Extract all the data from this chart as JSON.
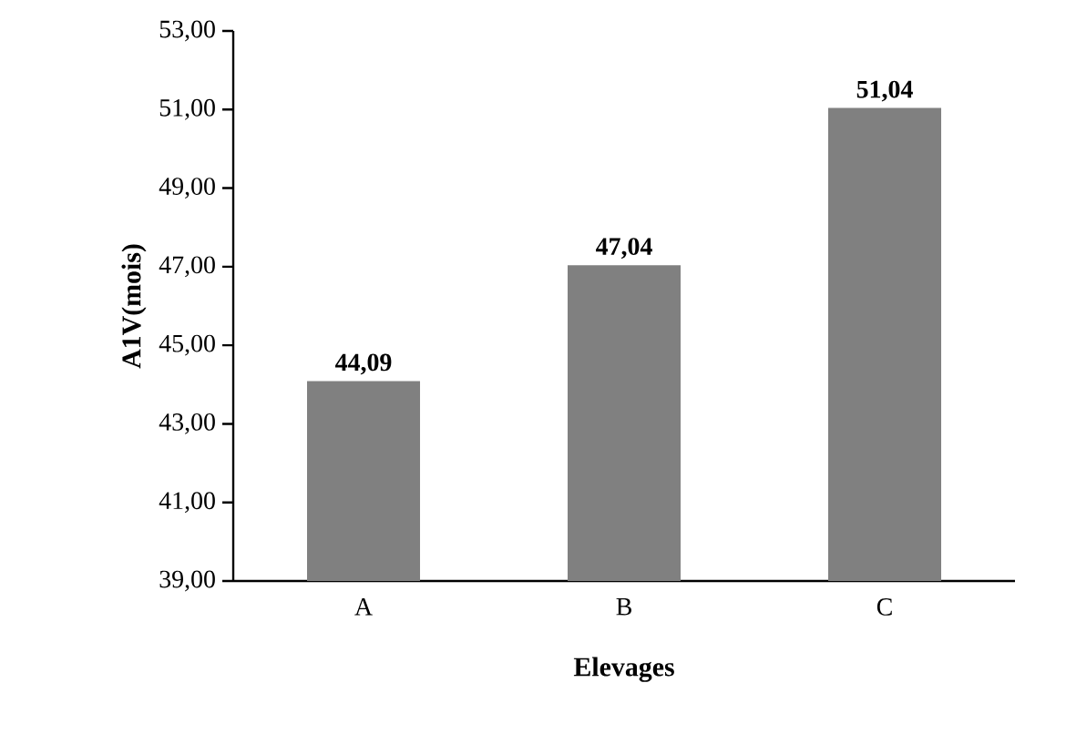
{
  "chart_data": {
    "type": "bar",
    "xlabel": "Elevages",
    "ylabel": "A1V(mois)",
    "categories": [
      "A",
      "B",
      "C"
    ],
    "values": [
      44.09,
      47.04,
      51.04
    ],
    "value_labels": [
      "44,09",
      "47,04",
      "51,04"
    ],
    "color": "#808080",
    "ylim": [
      39,
      53
    ],
    "yticks": [
      {
        "value": 39,
        "label": "39,00"
      },
      {
        "value": 41,
        "label": "41,00"
      },
      {
        "value": 43,
        "label": "43,00"
      },
      {
        "value": 45,
        "label": "45,00"
      },
      {
        "value": 47,
        "label": "47,00"
      },
      {
        "value": 49,
        "label": "49,00"
      },
      {
        "value": 51,
        "label": "51,00"
      },
      {
        "value": 53,
        "label": "53,00"
      }
    ],
    "grid": false
  }
}
